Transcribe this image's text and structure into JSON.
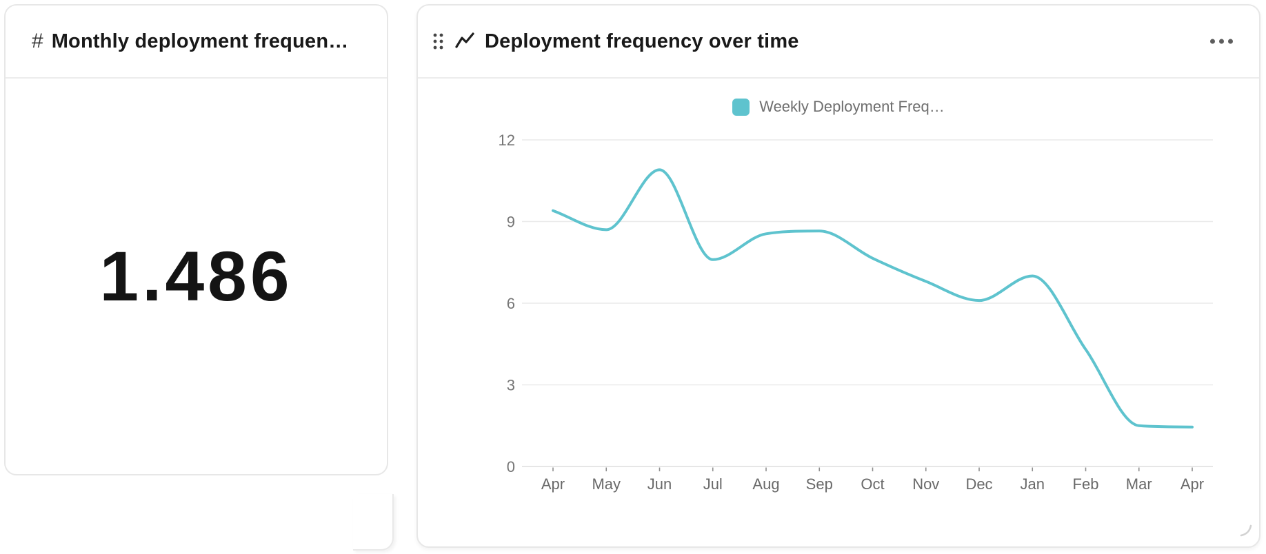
{
  "left_card": {
    "icon": "#",
    "title": "Monthly deployment frequen…",
    "value": "1.486"
  },
  "right_card": {
    "title": "Deployment frequency over time"
  },
  "chart_data": {
    "type": "line",
    "title": "Deployment frequency over time",
    "legend": [
      "Weekly Deployment Freq…"
    ],
    "legend_position": "top",
    "categories": [
      "Apr",
      "May",
      "Jun",
      "Jul",
      "Aug",
      "Sep",
      "Oct",
      "Nov",
      "Dec",
      "Jan",
      "Feb",
      "Mar",
      "Apr"
    ],
    "series": [
      {
        "name": "Weekly Deployment Freq…",
        "color": "#5ec3ce",
        "values": [
          9.4,
          8.7,
          10.9,
          7.6,
          8.55,
          8.65,
          7.65,
          6.8,
          6.1,
          7.0,
          4.3,
          1.5,
          1.45
        ]
      }
    ],
    "xlabel": "",
    "ylabel": "",
    "yticks": [
      0,
      3,
      6,
      9,
      12
    ],
    "ylim": [
      0,
      12
    ],
    "grid": true,
    "smooth": true
  },
  "colors": {
    "accent": "#5ec3ce",
    "card_border": "#e7e7e7",
    "grid_line": "#eaeaea",
    "axis_line": "#dedede",
    "tick_mark": "#8f8f8f",
    "axis_label": "#757575",
    "title_text": "#191919"
  }
}
